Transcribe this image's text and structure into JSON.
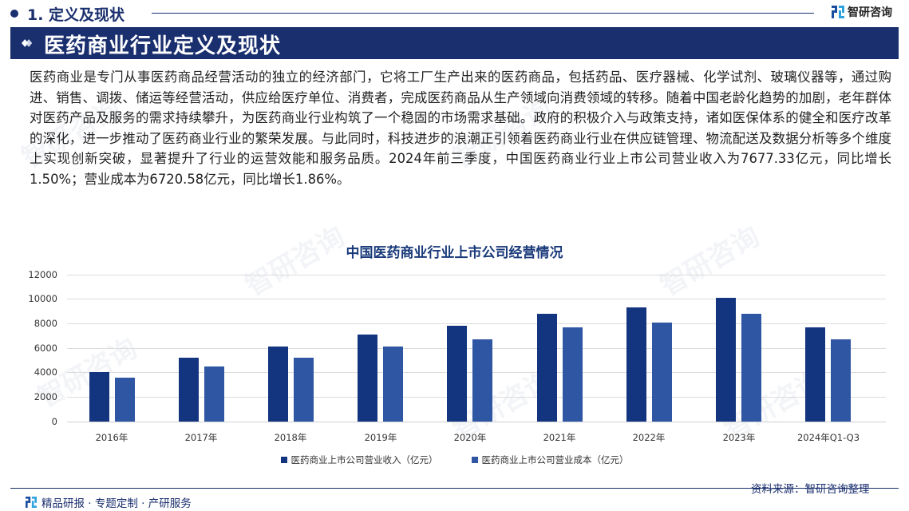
{
  "header": {
    "section_title": "1. 定义及现状",
    "brand_name": "智研咨询",
    "banner_title": "医药商业行业定义及现状"
  },
  "body": {
    "paragraph": "医药商业是专门从事医药商品经营活动的独立的经济部门，它将工厂生产出来的医药商品，包括药品、医疗器械、化学试剂、玻璃仪器等，通过购进、销售、调拨、储运等经营活动，供应给医疗单位、消费者，完成医药商品从生产领域向消费领域的转移。随着中国老龄化趋势的加剧，老年群体对医药产品及服务的需求持续攀升，为医药商业行业构筑了一个稳固的市场需求基础。政府的积极介入与政策支持，诸如医保体系的健全和医疗改革的深化，进一步推动了医药商业行业的繁荣发展。与此同时，科技进步的浪潮正引领着医药商业行业在供应链管理、物流配送及数据分析等多个维度上实现创新突破，显著提升了行业的运营效能和服务品质。2024年前三季度，中国医药商业行业上市公司营业收入为7677.33亿元，同比增长1.50%；营业成本为6720.58亿元，同比增长1.86%。"
  },
  "chart_data": {
    "type": "bar",
    "title": "中国医药商业行业上市公司经营情况",
    "xlabel": "",
    "ylabel": "",
    "ylim": [
      0,
      12000
    ],
    "yticks": [
      "12000",
      "10000",
      "8000",
      "6000",
      "4000",
      "2000",
      "0"
    ],
    "grid": true,
    "legend_position": "bottom",
    "categories": [
      "2016年",
      "2017年",
      "2018年",
      "2019年",
      "2020年",
      "2021年",
      "2022年",
      "2023年",
      "2024年Q1-Q3"
    ],
    "series": [
      {
        "name": "医药商业上市公司营业收入（亿元）",
        "color": "#13357f",
        "values": [
          4050,
          5200,
          6100,
          7100,
          7800,
          8800,
          9350,
          10100,
          7677.33
        ]
      },
      {
        "name": "医药商业上市公司营业成本（亿元）",
        "color": "#2e56a3",
        "values": [
          3600,
          4500,
          5250,
          6100,
          6750,
          7700,
          8100,
          8800,
          6720.58
        ]
      }
    ]
  },
  "footer": {
    "tagline": "精品研报 · 专题定制 · 产研服务",
    "source": "资料来源：智研咨询整理"
  },
  "colors": {
    "brand_navy": "#1a2f6e",
    "series_dark": "#13357f",
    "series_light": "#2e56a3"
  }
}
